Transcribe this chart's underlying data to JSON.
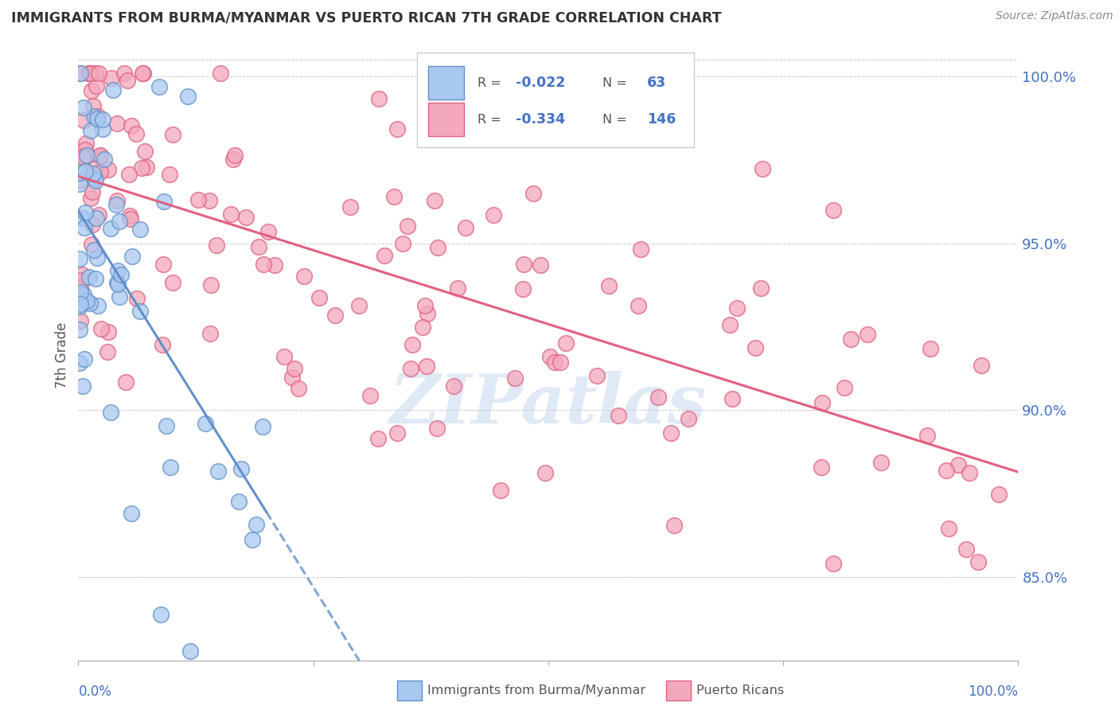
{
  "title": "IMMIGRANTS FROM BURMA/MYANMAR VS PUERTO RICAN 7TH GRADE CORRELATION CHART",
  "source": "Source: ZipAtlas.com",
  "ylabel": "7th Grade",
  "xlim": [
    0.0,
    1.0
  ],
  "ylim": [
    0.825,
    1.008
  ],
  "legend_blue_label": "Immigrants from Burma/Myanmar",
  "legend_pink_label": "Puerto Ricans",
  "R_blue": -0.022,
  "N_blue": 63,
  "R_pink": -0.334,
  "N_pink": 146,
  "blue_color": "#a8c8f0",
  "pink_color": "#f4a8bc",
  "blue_edge": "#6090c8",
  "pink_edge": "#e06080",
  "title_color": "#333333",
  "axis_label_color": "#4472c4",
  "watermark_color": "#c8d8f0",
  "grid_color": "#bbbbbb",
  "legend_text_color": "#555555",
  "ytick_positions": [
    0.85,
    0.9,
    0.95,
    1.0
  ],
  "ytick_labels": [
    "85.0%",
    "90.0%",
    "95.0%",
    "100.0%"
  ]
}
